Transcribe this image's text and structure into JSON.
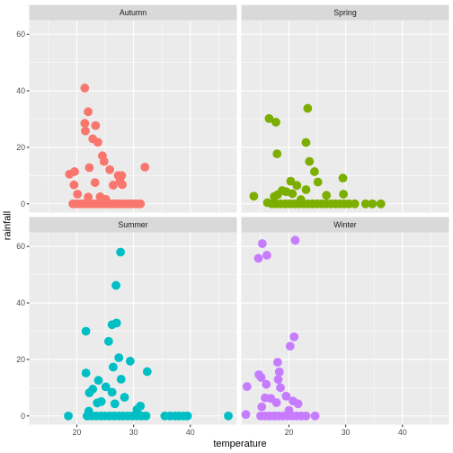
{
  "chart_data": {
    "type": "scatter",
    "facet_order": [
      "Autumn",
      "Spring",
      "Summer",
      "Winter"
    ],
    "xlabel": "temperature",
    "ylabel": "rainfall",
    "xlim": [
      11.6,
      48.2
    ],
    "ylim": [
      -3.1,
      65.0
    ],
    "x_ticks": [
      20,
      30,
      40
    ],
    "y_ticks": [
      0,
      20,
      40,
      60
    ],
    "grid": true,
    "legend": "none",
    "colors": {
      "Autumn": "#F8766D",
      "Spring": "#7CAE00",
      "Summer": "#00BFC4",
      "Winter": "#C77CFF",
      "panel_bg": "#EBEBEB",
      "strip_bg": "#D9D9D9",
      "grid": "#FFFFFF"
    },
    "facets": [
      {
        "name": "Autumn",
        "points": [
          [
            21.4,
            41.0
          ],
          [
            22.0,
            32.6
          ],
          [
            21.4,
            28.5
          ],
          [
            23.3,
            27.7
          ],
          [
            21.5,
            25.8
          ],
          [
            22.8,
            23.0
          ],
          [
            23.7,
            21.8
          ],
          [
            24.5,
            17.0
          ],
          [
            24.8,
            15.0
          ],
          [
            22.2,
            12.8
          ],
          [
            25.8,
            12.1
          ],
          [
            18.7,
            10.5
          ],
          [
            27.3,
            10.0
          ],
          [
            27.9,
            10.0
          ],
          [
            19.6,
            11.4
          ],
          [
            27.6,
            8.0
          ],
          [
            23.2,
            7.5
          ],
          [
            26.4,
            6.6
          ],
          [
            19.5,
            6.7
          ],
          [
            28.0,
            6.8
          ],
          [
            32.0,
            13.0
          ],
          [
            20.1,
            3.4
          ],
          [
            22.0,
            2.4
          ],
          [
            24.1,
            2.5
          ],
          [
            25.1,
            1.6
          ],
          [
            19.3,
            0.0
          ],
          [
            20.0,
            0.0
          ],
          [
            20.7,
            0.0
          ],
          [
            21.2,
            0.0
          ],
          [
            21.9,
            0.0
          ],
          [
            22.5,
            0.0
          ],
          [
            23.1,
            0.0
          ],
          [
            23.7,
            0.0
          ],
          [
            24.2,
            0.0
          ],
          [
            24.8,
            0.0
          ],
          [
            25.3,
            0.0
          ],
          [
            25.9,
            0.0
          ],
          [
            26.5,
            0.0
          ],
          [
            27.0,
            0.0
          ],
          [
            27.6,
            0.0
          ],
          [
            28.2,
            0.0
          ],
          [
            28.8,
            0.0
          ],
          [
            29.4,
            0.0
          ],
          [
            30.0,
            0.0
          ],
          [
            30.6,
            0.0
          ],
          [
            31.2,
            0.0
          ]
        ]
      },
      {
        "name": "Spring",
        "points": [
          [
            23.3,
            33.8
          ],
          [
            16.5,
            30.2
          ],
          [
            17.7,
            28.9
          ],
          [
            23.0,
            21.7
          ],
          [
            23.6,
            15.0
          ],
          [
            17.9,
            17.7
          ],
          [
            24.5,
            11.4
          ],
          [
            29.5,
            9.1
          ],
          [
            20.3,
            8.0
          ],
          [
            25.1,
            7.7
          ],
          [
            21.4,
            6.5
          ],
          [
            23.0,
            5.0
          ],
          [
            18.8,
            4.7
          ],
          [
            19.5,
            4.3
          ],
          [
            20.6,
            3.6
          ],
          [
            18.0,
            3.2
          ],
          [
            17.4,
            2.6
          ],
          [
            13.8,
            2.7
          ],
          [
            26.6,
            3.0
          ],
          [
            29.6,
            3.4
          ],
          [
            22.1,
            1.5
          ],
          [
            16.2,
            0.4
          ],
          [
            17.0,
            0.0
          ],
          [
            17.8,
            0.0
          ],
          [
            18.6,
            0.0
          ],
          [
            19.4,
            0.0
          ],
          [
            20.2,
            0.0
          ],
          [
            21.0,
            0.0
          ],
          [
            21.8,
            0.0
          ],
          [
            22.6,
            0.0
          ],
          [
            23.4,
            0.0
          ],
          [
            24.2,
            0.0
          ],
          [
            25.0,
            0.0
          ],
          [
            25.8,
            0.0
          ],
          [
            26.6,
            0.0
          ],
          [
            27.4,
            0.0
          ],
          [
            28.2,
            0.0
          ],
          [
            29.0,
            0.0
          ],
          [
            29.8,
            0.0
          ],
          [
            30.6,
            0.0
          ],
          [
            31.6,
            0.0
          ],
          [
            33.5,
            0.0
          ],
          [
            34.7,
            0.0
          ],
          [
            36.2,
            0.0
          ]
        ]
      },
      {
        "name": "Summer",
        "points": [
          [
            27.7,
            58.0
          ],
          [
            26.9,
            46.2
          ],
          [
            27.0,
            32.9
          ],
          [
            26.2,
            32.3
          ],
          [
            21.6,
            30.0
          ],
          [
            25.6,
            26.4
          ],
          [
            27.4,
            20.6
          ],
          [
            29.4,
            19.4
          ],
          [
            26.4,
            17.3
          ],
          [
            21.6,
            15.2
          ],
          [
            32.4,
            15.7
          ],
          [
            27.8,
            13.0
          ],
          [
            23.8,
            12.6
          ],
          [
            25.1,
            10.3
          ],
          [
            22.8,
            9.5
          ],
          [
            22.2,
            8.2
          ],
          [
            26.2,
            8.4
          ],
          [
            28.4,
            6.6
          ],
          [
            24.3,
            5.1
          ],
          [
            23.6,
            4.6
          ],
          [
            26.7,
            4.3
          ],
          [
            31.2,
            3.5
          ],
          [
            30.6,
            2.3
          ],
          [
            22.1,
            1.7
          ],
          [
            18.5,
            0.0
          ],
          [
            21.8,
            0.0
          ],
          [
            22.6,
            0.0
          ],
          [
            23.4,
            0.0
          ],
          [
            24.2,
            0.0
          ],
          [
            25.0,
            0.0
          ],
          [
            25.8,
            0.0
          ],
          [
            26.6,
            0.0
          ],
          [
            27.4,
            0.0
          ],
          [
            28.2,
            0.0
          ],
          [
            29.0,
            0.0
          ],
          [
            29.8,
            0.0
          ],
          [
            30.6,
            0.0
          ],
          [
            31.4,
            0.0
          ],
          [
            32.2,
            0.0
          ],
          [
            35.5,
            0.0
          ],
          [
            36.4,
            0.0
          ],
          [
            37.3,
            0.0
          ],
          [
            38.0,
            0.0
          ],
          [
            38.8,
            0.0
          ],
          [
            39.5,
            0.0
          ],
          [
            46.7,
            0.0
          ]
        ]
      },
      {
        "name": "Winter",
        "points": [
          [
            21.1,
            62.2
          ],
          [
            15.3,
            61.0
          ],
          [
            14.6,
            55.8
          ],
          [
            16.1,
            56.9
          ],
          [
            20.9,
            28.0
          ],
          [
            20.2,
            24.7
          ],
          [
            18.0,
            19.0
          ],
          [
            18.3,
            15.6
          ],
          [
            14.7,
            14.6
          ],
          [
            15.1,
            13.6
          ],
          [
            18.1,
            12.9
          ],
          [
            16.0,
            11.2
          ],
          [
            12.6,
            10.4
          ],
          [
            18.5,
            10.0
          ],
          [
            19.5,
            7.0
          ],
          [
            15.8,
            6.4
          ],
          [
            16.8,
            6.2
          ],
          [
            20.7,
            5.3
          ],
          [
            17.8,
            4.7
          ],
          [
            21.6,
            4.3
          ],
          [
            15.2,
            3.2
          ],
          [
            20.0,
            2.0
          ],
          [
            12.4,
            0.5
          ],
          [
            15.0,
            0.0
          ],
          [
            15.8,
            0.0
          ],
          [
            16.6,
            0.0
          ],
          [
            17.4,
            0.0
          ],
          [
            18.2,
            0.0
          ],
          [
            19.0,
            0.0
          ],
          [
            19.8,
            0.0
          ],
          [
            20.6,
            0.0
          ],
          [
            21.4,
            0.0
          ],
          [
            22.2,
            0.0
          ],
          [
            23.0,
            0.0
          ],
          [
            24.6,
            0.0
          ]
        ]
      }
    ]
  }
}
